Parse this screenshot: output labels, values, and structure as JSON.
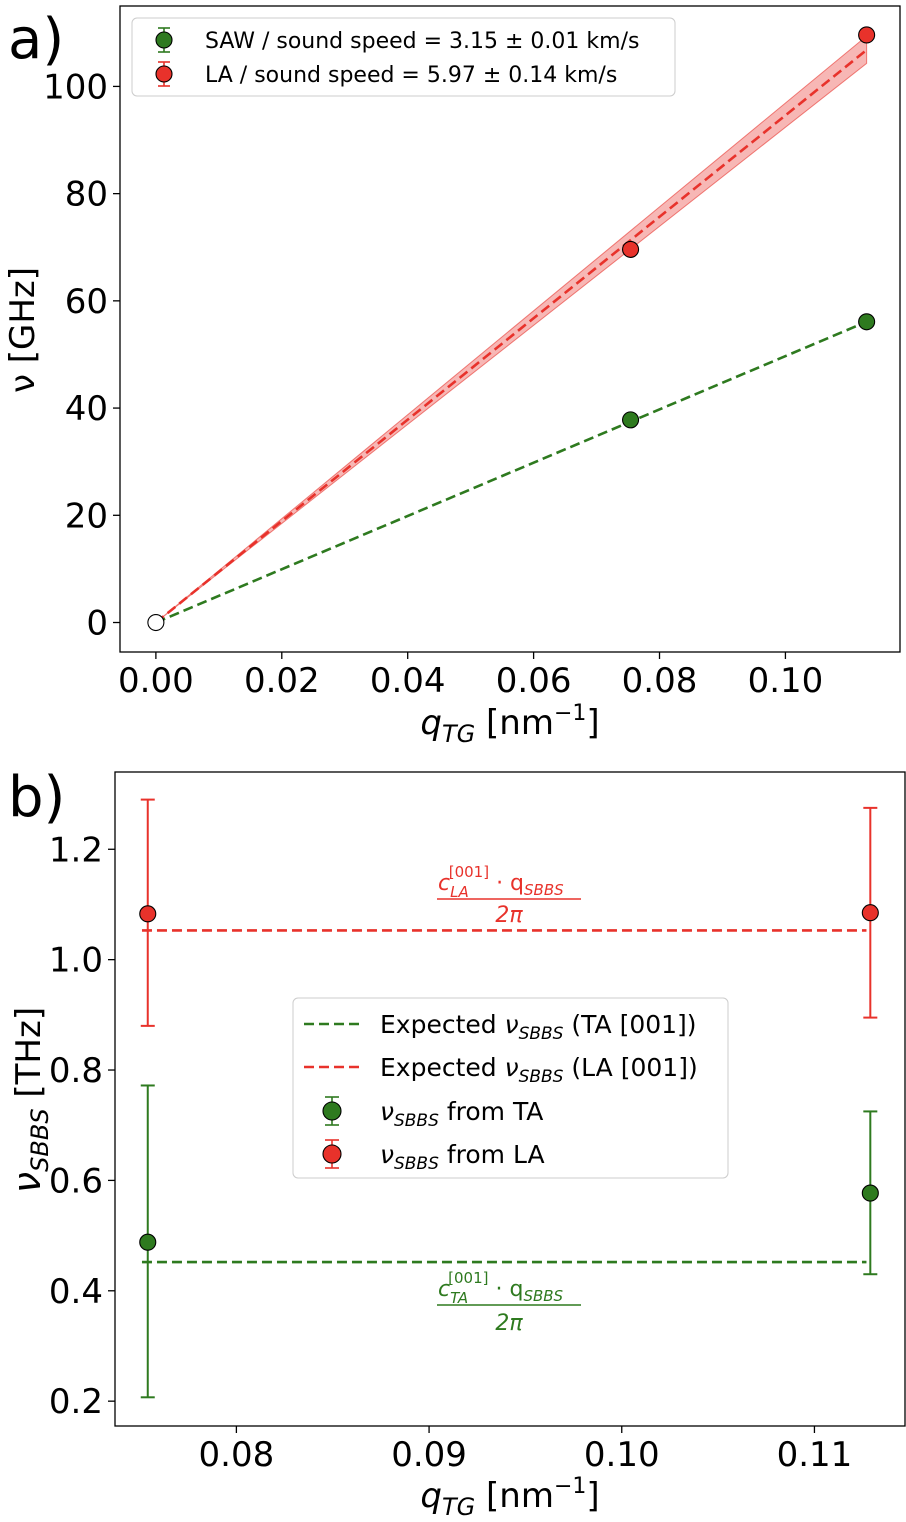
{
  "chart_data": [
    {
      "type": "scatter",
      "panel_label": "a)",
      "xlabel": {
        "main": "q",
        "sub": "TG",
        "unit_open": " [nm",
        "unit_sup": "−1",
        "unit_close": "]"
      },
      "ylabel": "ν [GHz]",
      "xlim": [
        -0.0057,
        0.1182
      ],
      "ylim": [
        -5.5,
        115
      ],
      "xticks": [
        0.0,
        0.02,
        0.04,
        0.06,
        0.08,
        0.1
      ],
      "xtick_labels": [
        "0.00",
        "0.02",
        "0.04",
        "0.06",
        "0.08",
        "0.10"
      ],
      "yticks": [
        0,
        20,
        40,
        60,
        80,
        100
      ],
      "ytick_labels": [
        "0",
        "20",
        "40",
        "60",
        "80",
        "100"
      ],
      "legend_position": "top-left",
      "origin_point": {
        "x": 0.0,
        "y": 0.0
      },
      "series": [
        {
          "name": "SAW / sound speed = 3.15 ± 0.01 km/s",
          "color": "#2e7a1f",
          "points": [
            {
              "x": 0.0754,
              "y": 37.8
            },
            {
              "x": 0.1129,
              "y": 56.1
            }
          ],
          "fit": {
            "x": [
              0.0,
              0.1129
            ],
            "y": [
              0.0,
              56.1
            ]
          },
          "band": null
        },
        {
          "name": "LA / sound speed = 5.97 ± 0.14 km/s",
          "color": "#e8322b",
          "points": [
            {
              "x": 0.0754,
              "y": 69.6
            },
            {
              "x": 0.1129,
              "y": 109.6
            }
          ],
          "fit": {
            "x": [
              0.0,
              0.1129
            ],
            "y": [
              0.0,
              106.8
            ]
          },
          "band": {
            "x": [
              0.0,
              0.1129
            ],
            "lower": [
              0.0,
              104.3
            ],
            "upper": [
              0.0,
              109.4
            ]
          }
        }
      ]
    },
    {
      "type": "scatter",
      "panel_label": "b)",
      "xlabel": {
        "main": "q",
        "sub": "TG",
        "unit_open": " [nm",
        "unit_sup": "−1",
        "unit_close": "]"
      },
      "ylabel": {
        "main": "ν",
        "sub": "SBBS",
        "unit": " [THz]"
      },
      "xlim": [
        0.0737,
        0.1147
      ],
      "ylim": [
        0.155,
        1.34
      ],
      "xticks": [
        0.08,
        0.09,
        0.1,
        0.11
      ],
      "xtick_labels": [
        "0.08",
        "0.09",
        "0.10",
        "0.11"
      ],
      "yticks": [
        0.2,
        0.4,
        0.6,
        0.8,
        1.0,
        1.2
      ],
      "ytick_labels": [
        "0.2",
        "0.4",
        "0.6",
        "0.8",
        "1.0",
        "1.2"
      ],
      "legend_position": "center",
      "expected_lines": [
        {
          "name": "Expected",
          "nu": "ν",
          "sub": "SBBS",
          "mode": " (TA [001])",
          "value": 0.452,
          "color": "#2e7a1f",
          "x_range": [
            0.0751,
            0.1127
          ]
        },
        {
          "name": "Expected",
          "nu": "ν",
          "sub": "SBBS",
          "mode": " (LA [001])",
          "value": 1.053,
          "color": "#e8322b",
          "x_range": [
            0.0751,
            0.1127
          ]
        }
      ],
      "series": [
        {
          "name": "from TA",
          "nu": "ν",
          "sub": "SBBS",
          "color": "#2e7a1f",
          "points": [
            {
              "x": 0.0754,
              "y": 0.488,
              "err_low": 0.207,
              "err_high": 0.772
            },
            {
              "x": 0.1129,
              "y": 0.577,
              "err_low": 0.43,
              "err_high": 0.725
            }
          ]
        },
        {
          "name": "from LA",
          "nu": "ν",
          "sub": "SBBS",
          "color": "#e8322b",
          "points": [
            {
              "x": 0.0754,
              "y": 1.083,
              "err_low": 0.88,
              "err_high": 1.29
            },
            {
              "x": 0.1129,
              "y": 1.085,
              "err_low": 0.895,
              "err_high": 1.275
            }
          ]
        }
      ],
      "annotations": [
        {
          "id": "la",
          "c": "c",
          "sup": "[001]",
          "sub": "LA",
          "dot": " · q",
          "qsub": "SBBS",
          "denominator": "2π",
          "color": "#e8322b"
        },
        {
          "id": "ta",
          "c": "c",
          "sup": "[001]",
          "sub": "TA",
          "dot": " · q",
          "qsub": "SBBS",
          "denominator": "2π",
          "color": "#2e7a1f"
        }
      ]
    }
  ]
}
